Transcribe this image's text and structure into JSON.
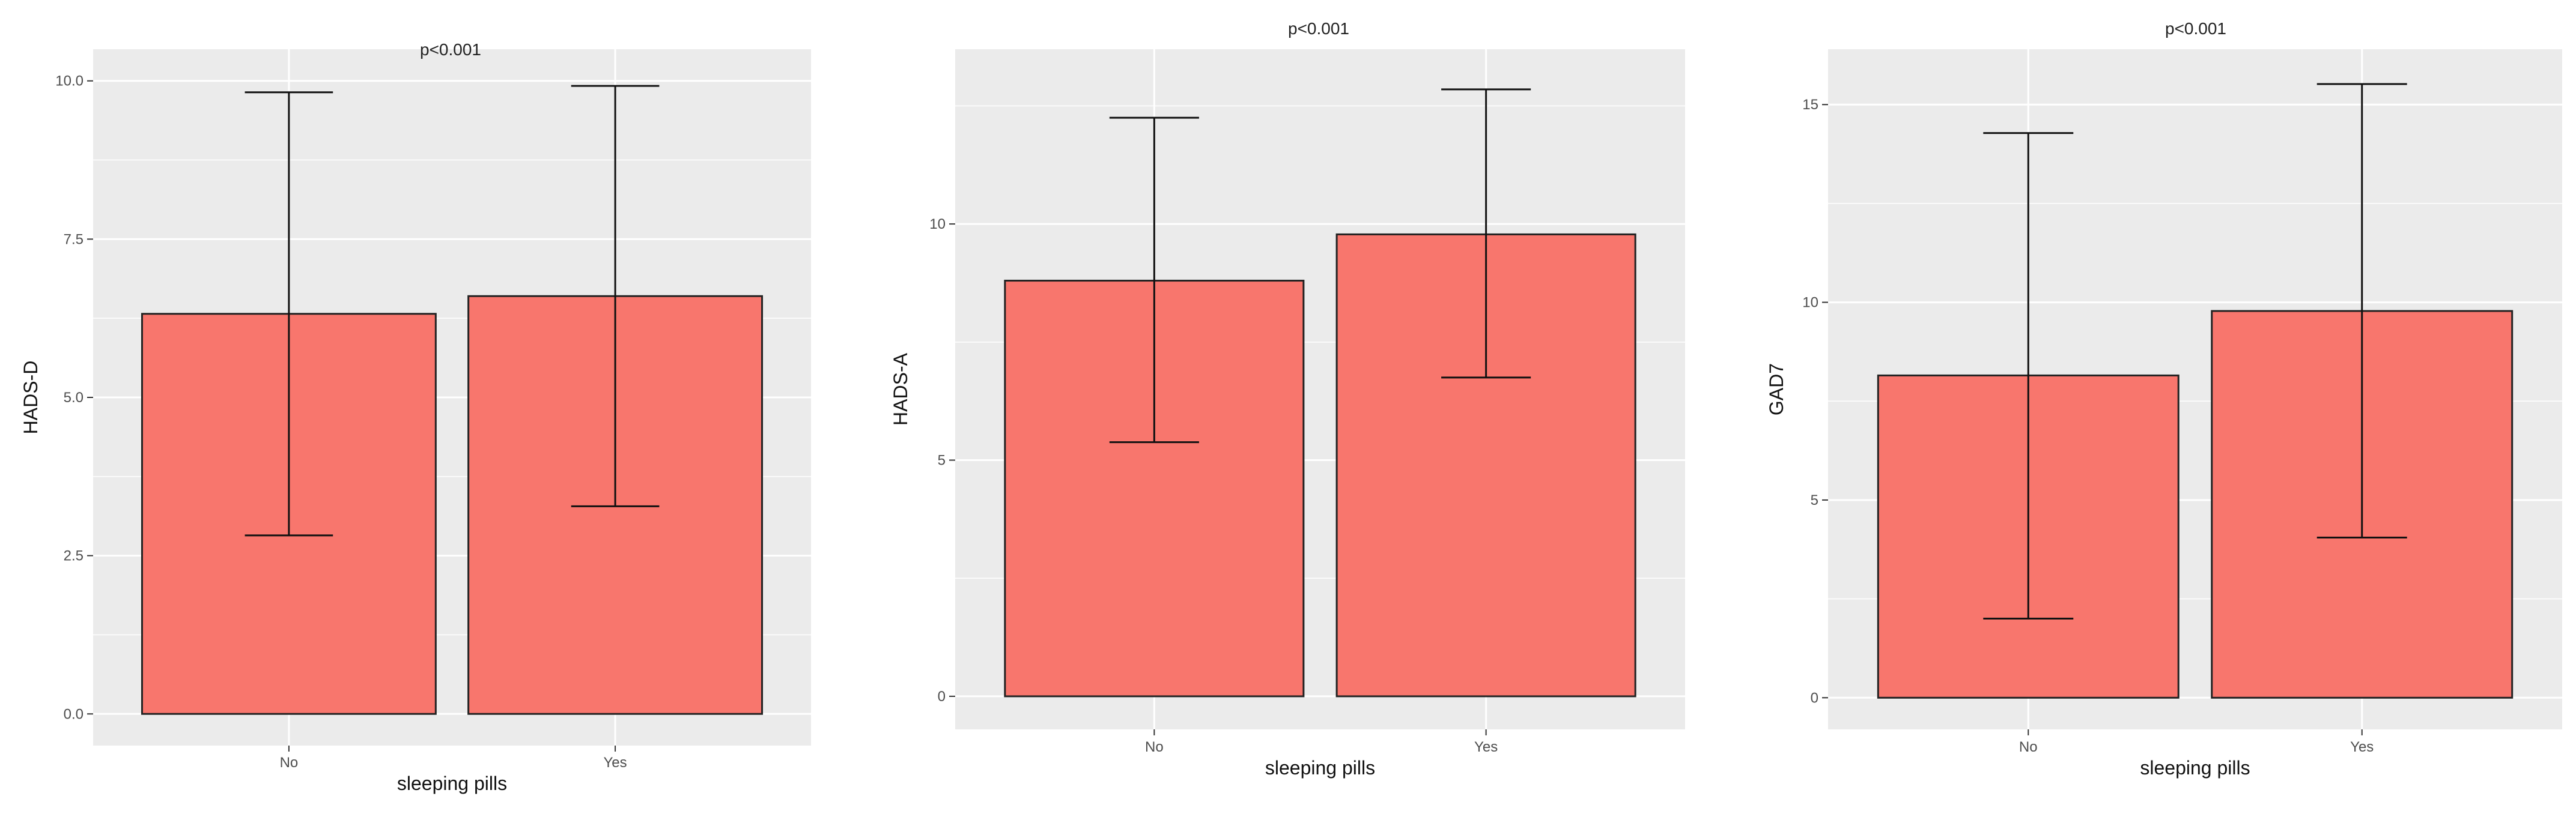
{
  "chart_data": [
    {
      "type": "bar",
      "title": "p<0.001",
      "xlabel": "sleeping pills",
      "ylabel": "HADS-D",
      "categories": [
        "No",
        "Yes"
      ],
      "values": [
        6.32,
        6.6
      ],
      "error_low": [
        2.82,
        3.28
      ],
      "error_high": [
        9.82,
        9.92
      ],
      "ylim": [
        -0.5,
        10.5
      ],
      "yticks": [
        0,
        2.5,
        5,
        7.5,
        10
      ],
      "ytick_labels": [
        "0.0",
        "2.5",
        "5.0",
        "7.5",
        "10.0"
      ],
      "bar_color": "#F8766D",
      "panel_background": "#EBEBEB",
      "grid": true,
      "legend": "none"
    },
    {
      "type": "bar",
      "title": "p<0.001",
      "xlabel": "sleeping pills",
      "ylabel": "HADS-A",
      "categories": [
        "No",
        "Yes"
      ],
      "values": [
        8.8,
        9.78
      ],
      "error_low": [
        5.38,
        6.75
      ],
      "error_high": [
        12.25,
        12.85
      ],
      "ylim": [
        -0.7,
        13.7
      ],
      "yticks": [
        0,
        5,
        10
      ],
      "ytick_labels": [
        "0",
        "5",
        "10"
      ],
      "bar_color": "#F8766D",
      "panel_background": "#EBEBEB",
      "grid": true,
      "legend": "none"
    },
    {
      "type": "bar",
      "title": "p<0.001",
      "xlabel": "sleeping pills",
      "ylabel": "GAD7",
      "categories": [
        "No",
        "Yes"
      ],
      "values": [
        8.15,
        9.78
      ],
      "error_low": [
        2.0,
        4.05
      ],
      "error_high": [
        14.28,
        15.52
      ],
      "ylim": [
        -0.8,
        16.4
      ],
      "yticks": [
        0,
        5,
        10,
        15
      ],
      "ytick_labels": [
        "0",
        "5",
        "10",
        "15"
      ],
      "bar_color": "#F8766D",
      "panel_background": "#EBEBEB",
      "grid": true,
      "legend": "none"
    }
  ]
}
